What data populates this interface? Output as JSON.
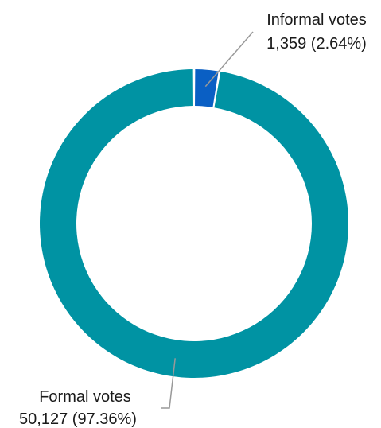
{
  "chart_data": {
    "type": "pie",
    "style": "donut",
    "title": "",
    "slices": [
      {
        "label": "Informal votes",
        "value": 1359,
        "value_text": "1,359",
        "percent": 2.64,
        "percent_text": "(2.64%)",
        "color": "#0a5fc4"
      },
      {
        "label": "Formal votes",
        "value": 50127,
        "value_text": "50,127",
        "percent": 97.36,
        "percent_text": "(97.36%)",
        "color": "#0093a3"
      }
    ],
    "legend": "none"
  }
}
